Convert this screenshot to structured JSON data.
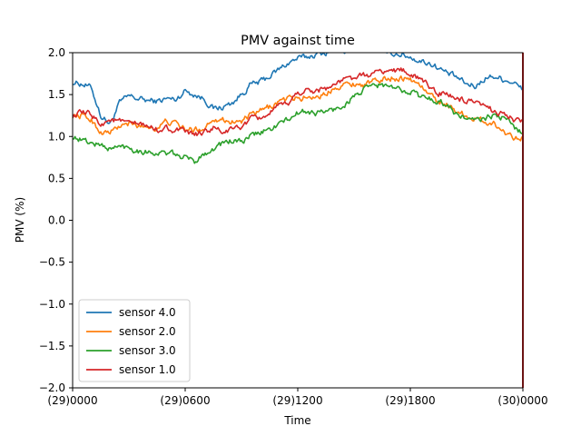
{
  "chart_data": {
    "type": "line",
    "title": "PMV against  time",
    "xlabel": "Time",
    "ylabel": "PMV (%)",
    "xlim": [
      0,
      24
    ],
    "ylim": [
      -2.0,
      2.0
    ],
    "x_ticks": [
      {
        "value": 0,
        "label": "(29)0000"
      },
      {
        "value": 6,
        "label": "(29)0600"
      },
      {
        "value": 12,
        "label": "(29)1200"
      },
      {
        "value": 18,
        "label": "(29)1800"
      },
      {
        "value": 24,
        "label": "(30)0000"
      }
    ],
    "y_ticks": [
      {
        "value": 2.0,
        "label": "2.0"
      },
      {
        "value": 1.5,
        "label": "1.5"
      },
      {
        "value": 1.0,
        "label": "1.0"
      },
      {
        "value": 0.5,
        "label": "0.5"
      },
      {
        "value": 0.0,
        "label": "0.0"
      },
      {
        "value": -0.5,
        "label": "−0.5"
      },
      {
        "value": -1.0,
        "label": "−1.0"
      },
      {
        "value": -1.5,
        "label": "−1.5"
      },
      {
        "value": -2.0,
        "label": "−2.0"
      }
    ],
    "grid": false,
    "legend_position": "lower-left",
    "vertical_marker": {
      "x": 24,
      "color": "#d62728"
    },
    "x": [
      0,
      0.5,
      1,
      1.5,
      2,
      2.5,
      3,
      3.5,
      4,
      4.5,
      5,
      5.5,
      6,
      6.5,
      7,
      7.5,
      8,
      8.5,
      9,
      9.5,
      10,
      10.5,
      11,
      11.5,
      12,
      12.5,
      13,
      13.5,
      14,
      14.5,
      15,
      15.5,
      16,
      16.5,
      17,
      17.5,
      18,
      18.5,
      19,
      19.5,
      20,
      20.5,
      21,
      21.5,
      22,
      22.5,
      23,
      23.5,
      24
    ],
    "series": [
      {
        "name": "sensor 4.0",
        "color": "#1f77b4",
        "values": [
          1.65,
          1.63,
          1.58,
          1.25,
          1.15,
          1.4,
          1.48,
          1.45,
          1.43,
          1.42,
          1.45,
          1.44,
          1.55,
          1.5,
          1.45,
          1.33,
          1.35,
          1.4,
          1.5,
          1.62,
          1.65,
          1.72,
          1.8,
          1.88,
          1.93,
          1.95,
          1.98,
          2.0,
          2.05,
          2.02,
          2.06,
          2.03,
          2.04,
          2.02,
          2.0,
          1.98,
          1.95,
          1.9,
          1.88,
          1.82,
          1.75,
          1.7,
          1.62,
          1.6,
          1.7,
          1.72,
          1.68,
          1.65,
          1.55
        ]
      },
      {
        "name": "sensor 2.0",
        "color": "#ff7f0e",
        "values": [
          1.25,
          1.25,
          1.2,
          1.05,
          1.05,
          1.12,
          1.15,
          1.12,
          1.12,
          1.1,
          1.18,
          1.15,
          1.08,
          1.08,
          1.1,
          1.22,
          1.2,
          1.18,
          1.18,
          1.25,
          1.3,
          1.35,
          1.42,
          1.45,
          1.45,
          1.47,
          1.48,
          1.5,
          1.6,
          1.62,
          1.63,
          1.62,
          1.65,
          1.68,
          1.7,
          1.7,
          1.68,
          1.62,
          1.5,
          1.42,
          1.38,
          1.3,
          1.25,
          1.2,
          1.18,
          1.15,
          1.05,
          1.0,
          1.0
        ]
      },
      {
        "name": "sensor 3.0",
        "color": "#2ca02c",
        "values": [
          1.0,
          0.96,
          0.92,
          0.9,
          0.85,
          0.88,
          0.87,
          0.83,
          0.82,
          0.8,
          0.8,
          0.78,
          0.75,
          0.7,
          0.8,
          0.85,
          0.92,
          0.95,
          0.93,
          1.0,
          1.05,
          1.08,
          1.15,
          1.2,
          1.28,
          1.3,
          1.28,
          1.3,
          1.32,
          1.38,
          1.48,
          1.55,
          1.6,
          1.62,
          1.58,
          1.55,
          1.55,
          1.48,
          1.45,
          1.42,
          1.38,
          1.25,
          1.22,
          1.18,
          1.22,
          1.25,
          1.22,
          1.12,
          1.05
        ]
      },
      {
        "name": "sensor 1.0",
        "color": "#d62728",
        "values": [
          1.25,
          1.28,
          1.26,
          1.15,
          1.2,
          1.18,
          1.15,
          1.15,
          1.12,
          1.08,
          1.1,
          1.08,
          1.05,
          1.02,
          1.05,
          1.1,
          1.05,
          1.08,
          1.12,
          1.2,
          1.22,
          1.28,
          1.35,
          1.4,
          1.52,
          1.55,
          1.55,
          1.58,
          1.62,
          1.68,
          1.7,
          1.72,
          1.75,
          1.78,
          1.78,
          1.8,
          1.75,
          1.68,
          1.6,
          1.52,
          1.5,
          1.45,
          1.42,
          1.38,
          1.35,
          1.3,
          1.28,
          1.2,
          1.18
        ]
      }
    ]
  }
}
